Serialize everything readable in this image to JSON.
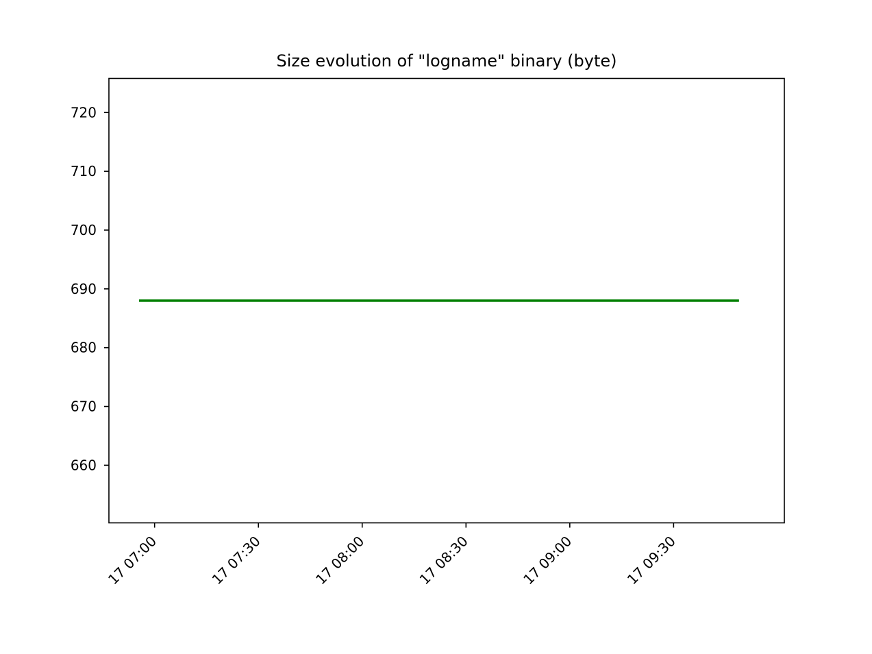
{
  "chart_data": {
    "type": "line",
    "title": "Size evolution of \"logname\" binary (byte)",
    "xlabel": "",
    "ylabel": "",
    "x_ticks": [
      {
        "label": "17 07:00",
        "minutes": 420
      },
      {
        "label": "17 07:30",
        "minutes": 450
      },
      {
        "label": "17 08:00",
        "minutes": 480
      },
      {
        "label": "17 08:30",
        "minutes": 510
      },
      {
        "label": "17 09:00",
        "minutes": 540
      },
      {
        "label": "17 09:30",
        "minutes": 570
      }
    ],
    "y_ticks": [
      660,
      670,
      680,
      690,
      700,
      710,
      720
    ],
    "xlim_minutes": [
      406.8,
      602.0
    ],
    "ylim": [
      650.2,
      725.8
    ],
    "series": [
      {
        "color": "#008000",
        "x_minutes": [
          415.5,
          588.9
        ],
        "values": [
          688,
          688
        ]
      }
    ],
    "grid": false,
    "legend": "none"
  }
}
